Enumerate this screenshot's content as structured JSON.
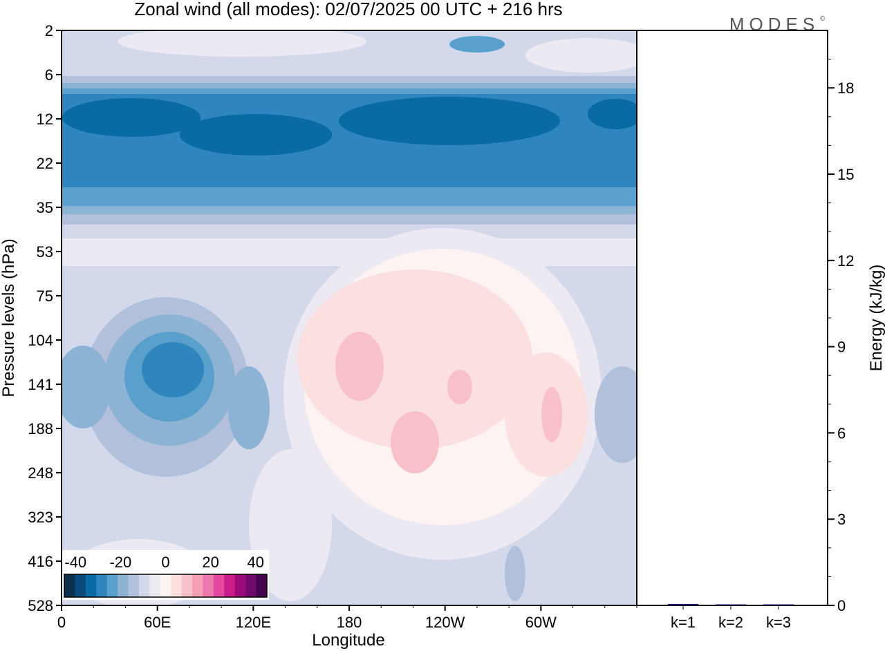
{
  "title": "Zonal wind (all modes):  02/07/2025  00 UTC  + 216 hrs",
  "logo": "MODES",
  "logo_mark": "©",
  "chart_data": [
    {
      "type": "heatmap",
      "xlabel": "Longitude",
      "ylabel": "Pressure levels (hPa)",
      "x_ticks": [
        "0",
        "60E",
        "120E",
        "180",
        "120W",
        "60W"
      ],
      "x_tick_degrees": [
        0,
        60,
        120,
        180,
        240,
        300
      ],
      "xlim": [
        0,
        360
      ],
      "y_ticks": [
        "2",
        "6",
        "12",
        "22",
        "35",
        "53",
        "75",
        "104",
        "141",
        "188",
        "248",
        "323",
        "416",
        "528"
      ],
      "colorbar": {
        "tick_labels": [
          "-40",
          "-20",
          "0",
          "20",
          "40"
        ],
        "levels": [
          -45,
          -40,
          -35,
          -30,
          -25,
          -20,
          -15,
          -10,
          -5,
          0,
          5,
          10,
          15,
          20,
          25,
          30,
          35,
          40,
          45
        ],
        "colors": [
          "#0b2f4f",
          "#0b4a7a",
          "#0a6aa4",
          "#2f86be",
          "#5aa0cc",
          "#8db3d4",
          "#b2c0dc",
          "#d3d9ea",
          "#ece9f3",
          "#fdf3f3",
          "#fcdfdf",
          "#f8c0c9",
          "#f49fb6",
          "#ee78ad",
          "#e4499f",
          "#c91d8b",
          "#9c0a79",
          "#6d0a6a",
          "#45054f"
        ]
      }
    },
    {
      "type": "bar",
      "categories": [
        "k=1",
        "k=2",
        "k=3"
      ],
      "values": [
        0.05,
        0.01,
        0.005
      ],
      "ylabel": "Energy (kJ/kg)",
      "y_ticks": [
        0,
        3,
        6,
        9,
        12,
        15,
        18
      ],
      "ylim": [
        0,
        20
      ],
      "bar_color": "#1a1a6e"
    }
  ]
}
